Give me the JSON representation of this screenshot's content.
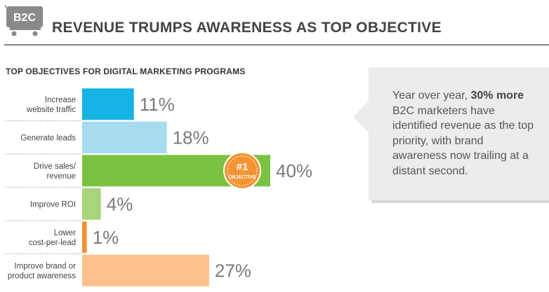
{
  "header": {
    "badge": "B2C",
    "title": "REVENUE TRUMPS AWARENESS AS TOP OBJECTIVE"
  },
  "chart_data": {
    "type": "bar",
    "orientation": "horizontal",
    "title": "TOP OBJECTIVES FOR DIGITAL MARKETING PROGRAMS",
    "categories": [
      [
        "Increase",
        "website traffic"
      ],
      [
        "Generate leads"
      ],
      [
        "Drive sales/",
        "revenue"
      ],
      [
        "Improve ROI"
      ],
      [
        "Lower",
        "cost-per-lead"
      ],
      [
        "Improve brand or",
        "product awareness"
      ]
    ],
    "values": [
      11,
      18,
      40,
      4,
      1,
      27
    ],
    "value_labels": [
      "11%",
      "18%",
      "40%",
      "4%",
      "1%",
      "27%"
    ],
    "colors": [
      "#16b4e4",
      "#a6dbf0",
      "#7cc242",
      "#a8d47a",
      "#f39433",
      "#fcc18c"
    ],
    "xlim": [
      0,
      40
    ],
    "annotation": {
      "bar_index": 2,
      "line1": "#1",
      "line2": "OBJECTIVE",
      "color": "#f39433"
    }
  },
  "callout": {
    "before": "Year over year, ",
    "highlight": "30% more",
    "after": " B2C marketers have identified revenue as the top priority, with brand awareness now trailing at a distant second."
  }
}
